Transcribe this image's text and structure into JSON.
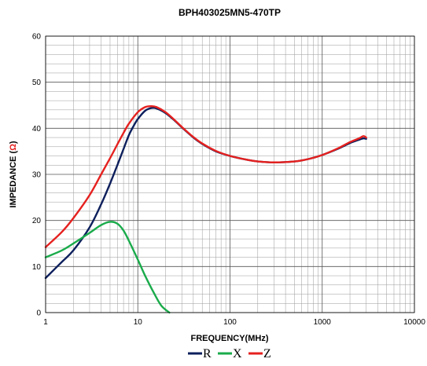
{
  "chart_data": {
    "type": "line",
    "title": "BPH403025MN5-470TP",
    "xlabel": "FREQUENCY(MHz)",
    "ylabel_main": "IMPEDANCE (",
    "ylabel_unit": "Ω",
    "ylabel_end": ")",
    "x_scale": "log",
    "xlim": [
      1,
      10000
    ],
    "ylim": [
      0,
      60
    ],
    "x_ticks": [
      1,
      10,
      100,
      1000,
      10000
    ],
    "x_tick_labels": [
      "1",
      "10",
      "100",
      "1000",
      "10000"
    ],
    "y_ticks": [
      0,
      10,
      20,
      30,
      40,
      50,
      60
    ],
    "y_tick_labels": [
      "0",
      "10",
      "20",
      "30",
      "40",
      "50",
      "60"
    ],
    "grid": true,
    "legend_position": "bottom-center",
    "colors": {
      "R": "#0d1f5c",
      "X": "#1aab4b",
      "Z": "#e5211f",
      "unit_symbol": "#e5211f"
    },
    "series": [
      {
        "name": "R",
        "color": "#0d1f5c",
        "points": [
          [
            1,
            7.5
          ],
          [
            1.5,
            11
          ],
          [
            2,
            13.5
          ],
          [
            3,
            18.5
          ],
          [
            4,
            23.5
          ],
          [
            5,
            28
          ],
          [
            6,
            32
          ],
          [
            7,
            35.5
          ],
          [
            8,
            38.5
          ],
          [
            9,
            40.5
          ],
          [
            10,
            42
          ],
          [
            12,
            43.8
          ],
          [
            14,
            44.4
          ],
          [
            16,
            44.3
          ],
          [
            20,
            43.3
          ],
          [
            25,
            41.7
          ],
          [
            30,
            40.2
          ],
          [
            40,
            38
          ],
          [
            50,
            36.6
          ],
          [
            70,
            35
          ],
          [
            100,
            34
          ],
          [
            150,
            33.2
          ],
          [
            200,
            32.8
          ],
          [
            300,
            32.6
          ],
          [
            500,
            32.8
          ],
          [
            700,
            33.3
          ],
          [
            1000,
            34.2
          ],
          [
            1500,
            35.6
          ],
          [
            2000,
            36.8
          ],
          [
            2500,
            37.5
          ],
          [
            2800,
            37.8
          ],
          [
            3000,
            37.7
          ]
        ]
      },
      {
        "name": "X",
        "color": "#1aab4b",
        "points": [
          [
            1,
            12
          ],
          [
            1.5,
            13.5
          ],
          [
            2,
            15
          ],
          [
            3,
            17.3
          ],
          [
            4,
            19
          ],
          [
            5,
            19.7
          ],
          [
            6,
            19.3
          ],
          [
            7,
            17.8
          ],
          [
            8,
            15.6
          ],
          [
            10,
            11.5
          ],
          [
            12,
            8
          ],
          [
            15,
            4.2
          ],
          [
            18,
            1.5
          ],
          [
            22,
            0
          ]
        ]
      },
      {
        "name": "Z",
        "color": "#e5211f",
        "points": [
          [
            1,
            14.2
          ],
          [
            1.5,
            17.5
          ],
          [
            2,
            20.5
          ],
          [
            3,
            25.5
          ],
          [
            4,
            30
          ],
          [
            5,
            33.5
          ],
          [
            6,
            36.5
          ],
          [
            7,
            39
          ],
          [
            8,
            41
          ],
          [
            10,
            43.5
          ],
          [
            12,
            44.6
          ],
          [
            14,
            44.8
          ],
          [
            16,
            44.6
          ],
          [
            20,
            43.5
          ],
          [
            25,
            41.8
          ],
          [
            30,
            40.3
          ],
          [
            40,
            38.1
          ],
          [
            50,
            36.7
          ],
          [
            70,
            35.1
          ],
          [
            100,
            34
          ],
          [
            150,
            33.2
          ],
          [
            200,
            32.8
          ],
          [
            300,
            32.6
          ],
          [
            500,
            32.8
          ],
          [
            700,
            33.3
          ],
          [
            1000,
            34.2
          ],
          [
            1500,
            35.7
          ],
          [
            2000,
            37
          ],
          [
            2500,
            37.8
          ],
          [
            2800,
            38.3
          ],
          [
            3000,
            38
          ]
        ]
      }
    ]
  }
}
